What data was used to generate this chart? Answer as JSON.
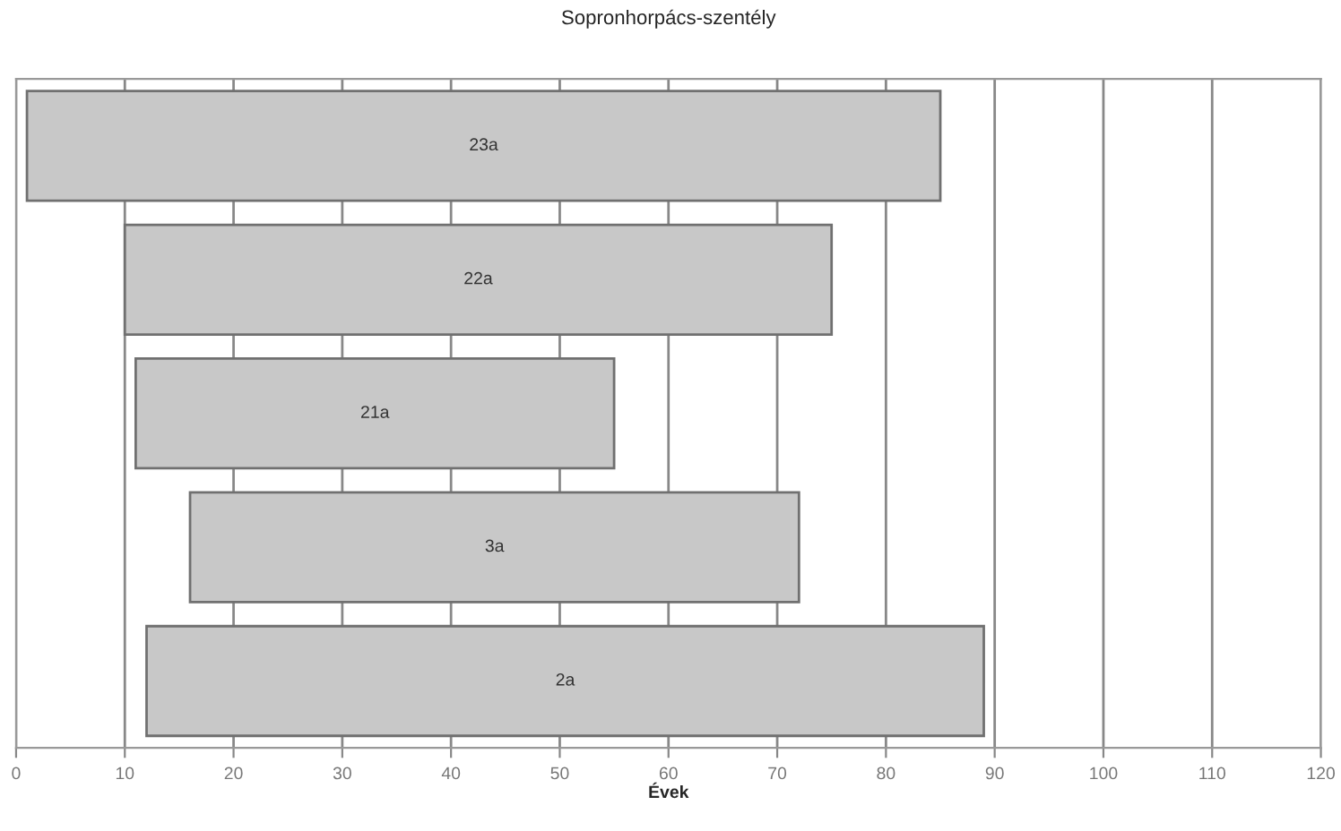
{
  "chart_data": {
    "type": "bar",
    "orientation": "horizontal",
    "title": "Sopronhorpács-szentély",
    "xlabel": "Évek",
    "categories": [
      "23a",
      "22a",
      "21a",
      "3a",
      "2a"
    ],
    "base": [
      1,
      10,
      11,
      16,
      12
    ],
    "values": [
      84,
      65,
      44,
      56,
      77
    ],
    "color": "#c8c8c8",
    "xlim": [
      0,
      120
    ],
    "xticks": [
      0,
      10,
      20,
      30,
      40,
      50,
      60,
      70,
      80,
      90,
      100,
      110,
      120
    ],
    "grid": "x",
    "tick_labels": "x"
  }
}
